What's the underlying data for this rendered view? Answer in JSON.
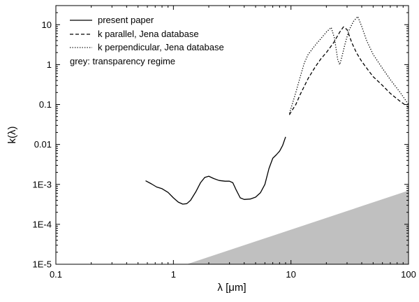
{
  "chart_data": {
    "type": "line",
    "title": "",
    "xlabel": "λ [μm]",
    "ylabel": "k(λ)",
    "xscale": "log",
    "yscale": "log",
    "xlim": [
      0.1,
      100
    ],
    "ylim": [
      1e-05,
      30
    ],
    "grid": false,
    "legend_position": "top-left",
    "x_ticks": [
      {
        "value": 0.1,
        "label": "0.1"
      },
      {
        "value": 1,
        "label": "1"
      },
      {
        "value": 10,
        "label": "10"
      },
      {
        "value": 100,
        "label": "100"
      }
    ],
    "y_ticks": [
      {
        "value": 1e-05,
        "label": "1E-5"
      },
      {
        "value": 0.0001,
        "label": "1E-4"
      },
      {
        "value": 0.001,
        "label": "1E-3"
      },
      {
        "value": 0.01,
        "label": "0.01"
      },
      {
        "value": 0.1,
        "label": "0.1"
      },
      {
        "value": 1,
        "label": "1"
      },
      {
        "value": 10,
        "label": "10"
      }
    ],
    "legend": {
      "entries": [
        {
          "label": "present paper",
          "style": "solid"
        },
        {
          "label": "k parallel, Jena database",
          "style": "dashed"
        },
        {
          "label": "k perpendicular, Jena database",
          "style": "dotted"
        }
      ],
      "note": "grey: transparency regime"
    },
    "series": [
      {
        "name": "present paper",
        "style": "solid",
        "points": [
          [
            0.58,
            0.00123
          ],
          [
            0.65,
            0.00103
          ],
          [
            0.72,
            0.00086
          ],
          [
            0.8,
            0.00078
          ],
          [
            0.9,
            0.00063
          ],
          [
            1.0,
            0.00046
          ],
          [
            1.1,
            0.00036
          ],
          [
            1.2,
            0.00032
          ],
          [
            1.3,
            0.00033
          ],
          [
            1.4,
            0.0004
          ],
          [
            1.55,
            0.00065
          ],
          [
            1.7,
            0.0011
          ],
          [
            1.85,
            0.0015
          ],
          [
            2.0,
            0.0016
          ],
          [
            2.2,
            0.0014
          ],
          [
            2.45,
            0.00125
          ],
          [
            2.75,
            0.0012
          ],
          [
            3.0,
            0.0012
          ],
          [
            3.2,
            0.0011
          ],
          [
            3.4,
            0.00075
          ],
          [
            3.7,
            0.00046
          ],
          [
            4.0,
            0.00042
          ],
          [
            4.5,
            0.00043
          ],
          [
            5.0,
            0.00048
          ],
          [
            5.5,
            0.00062
          ],
          [
            6.0,
            0.001
          ],
          [
            6.5,
            0.0025
          ],
          [
            7.0,
            0.0045
          ],
          [
            7.5,
            0.0055
          ],
          [
            8.0,
            0.0068
          ],
          [
            8.5,
            0.0095
          ],
          [
            9.0,
            0.0155
          ]
        ]
      },
      {
        "name": "k parallel, Jena database",
        "style": "dashed",
        "points": [
          [
            9.7,
            0.055
          ],
          [
            10.0,
            0.065
          ],
          [
            11.0,
            0.1
          ],
          [
            12.0,
            0.18
          ],
          [
            14.0,
            0.45
          ],
          [
            16.0,
            0.85
          ],
          [
            18.0,
            1.4
          ],
          [
            20.0,
            2.0
          ],
          [
            23.0,
            3.5
          ],
          [
            26.0,
            6.5
          ],
          [
            28.0,
            8.8
          ],
          [
            30.0,
            7.5
          ],
          [
            33.0,
            3.5
          ],
          [
            36.0,
            2.0
          ],
          [
            40.0,
            1.2
          ],
          [
            45.0,
            0.75
          ],
          [
            50.0,
            0.5
          ],
          [
            60.0,
            0.3
          ],
          [
            70.0,
            0.19
          ],
          [
            85.0,
            0.12
          ],
          [
            100.0,
            0.085
          ]
        ]
      },
      {
        "name": "k perpendicular, Jena database",
        "style": "dotted",
        "points": [
          [
            9.7,
            0.06
          ],
          [
            10.0,
            0.08
          ],
          [
            11.0,
            0.2
          ],
          [
            12.0,
            0.5
          ],
          [
            13.0,
            1.1
          ],
          [
            14.0,
            1.8
          ],
          [
            16.0,
            3.0
          ],
          [
            18.0,
            4.5
          ],
          [
            20.0,
            6.5
          ],
          [
            22.0,
            8.5
          ],
          [
            23.5,
            4.5
          ],
          [
            25.0,
            1.3
          ],
          [
            26.0,
            1.0
          ],
          [
            27.0,
            1.5
          ],
          [
            29.0,
            3.5
          ],
          [
            31.0,
            7.0
          ],
          [
            34.0,
            12.0
          ],
          [
            37.0,
            16.0
          ],
          [
            40.0,
            9.0
          ],
          [
            44.0,
            4.0
          ],
          [
            50.0,
            1.8
          ],
          [
            60.0,
            0.8
          ],
          [
            70.0,
            0.42
          ],
          [
            85.0,
            0.2
          ],
          [
            100.0,
            0.1
          ]
        ]
      }
    ],
    "shaded_region": {
      "description_label": "transparency regime",
      "color": "#c0c0c0",
      "polygon": [
        [
          1.3,
          1e-05
        ],
        [
          100.0,
          0.0007
        ],
        [
          100.0,
          1e-05
        ]
      ]
    }
  }
}
